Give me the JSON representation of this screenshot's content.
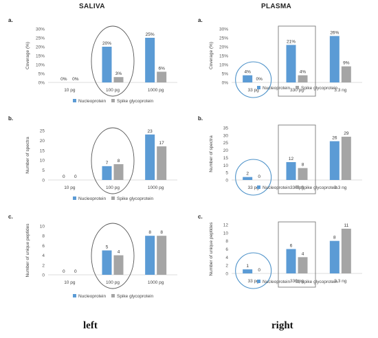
{
  "headers": {
    "left": "SALIVA",
    "right": "PLASMA"
  },
  "captions": {
    "left": "left",
    "right": "right"
  },
  "colors": {
    "nucleoprotein": "#5b9bd5",
    "spike": "#a5a5a5"
  },
  "chart_data": [
    {
      "id": "saliva-a",
      "panel_label": "a.",
      "type": "bar",
      "categories": [
        "10 pg",
        "100 pg",
        "1000 pg"
      ],
      "series": [
        {
          "name": "Nucleoprotein",
          "values": [
            0,
            20,
            25
          ],
          "labels": [
            "0%",
            "20%",
            "25%"
          ]
        },
        {
          "name": "Spike glycoprotein",
          "values": [
            0,
            3,
            6
          ],
          "labels": [
            "0%",
            "3%",
            "6%"
          ]
        }
      ],
      "ylabel": "Coverage (%)",
      "ylim": [
        0,
        30
      ],
      "yticks": [
        0,
        5,
        10,
        15,
        20,
        25,
        30
      ],
      "ytick_labels": [
        "0%",
        "5%",
        "10%",
        "15%",
        "20%",
        "25%",
        "30%"
      ],
      "grid": false,
      "legend": "bottom",
      "annotation": {
        "shape": "ellipse",
        "category_index": 1
      }
    },
    {
      "id": "saliva-b",
      "panel_label": "b.",
      "type": "bar",
      "categories": [
        "10 pg",
        "100 pg",
        "1000 pg"
      ],
      "series": [
        {
          "name": "Nucleoprotein",
          "values": [
            0,
            7,
            23
          ],
          "labels": [
            "0",
            "7",
            "23"
          ]
        },
        {
          "name": "Spike glycoprotein",
          "values": [
            0,
            8,
            17
          ],
          "labels": [
            "0",
            "8",
            "17"
          ]
        }
      ],
      "ylabel": "Number of spectra",
      "ylim": [
        0,
        25
      ],
      "yticks": [
        0,
        5,
        10,
        15,
        20,
        25
      ],
      "ytick_labels": [
        "0",
        "5",
        "10",
        "15",
        "20",
        "25"
      ],
      "grid": false,
      "legend": "bottom",
      "annotation": {
        "shape": "ellipse",
        "category_index": 1
      }
    },
    {
      "id": "saliva-c",
      "panel_label": "c.",
      "type": "bar",
      "categories": [
        "10 pg",
        "100 pg",
        "1000 pg"
      ],
      "series": [
        {
          "name": "Nucleoprotein",
          "values": [
            0,
            5,
            8
          ],
          "labels": [
            "0",
            "5",
            "8"
          ]
        },
        {
          "name": "Spike glycoprotein",
          "values": [
            0,
            4,
            8
          ],
          "labels": [
            "0",
            "4",
            "8"
          ]
        }
      ],
      "ylabel": "Number of unique peptides",
      "ylim": [
        0,
        10
      ],
      "yticks": [
        0,
        2,
        4,
        6,
        8,
        10
      ],
      "ytick_labels": [
        "0",
        "2",
        "4",
        "6",
        "8",
        "10"
      ],
      "grid": false,
      "legend": "bottom",
      "annotation": {
        "shape": "ellipse",
        "category_index": 1
      }
    },
    {
      "id": "plasma-a",
      "panel_label": "a.",
      "type": "bar",
      "categories": [
        "33 pg",
        "330 pg",
        "3.3 ng"
      ],
      "series": [
        {
          "name": "Nucleoprotein",
          "values": [
            4,
            21,
            26
          ],
          "labels": [
            "4%",
            "21%",
            "26%"
          ]
        },
        {
          "name": "Spike glycoprotein",
          "values": [
            0,
            4,
            9
          ],
          "labels": [
            "0%",
            "4%",
            "9%"
          ]
        }
      ],
      "ylabel": "Coverage (%)",
      "ylim": [
        0,
        30
      ],
      "yticks": [
        0,
        5,
        10,
        15,
        20,
        25,
        30
      ],
      "ytick_labels": [
        "0%",
        "5%",
        "10%",
        "15%",
        "20%",
        "25%",
        "30%"
      ],
      "grid": false,
      "legend": "bottom",
      "annotation": {
        "shape": "circle",
        "category_index": 0,
        "box_category_index": 1
      }
    },
    {
      "id": "plasma-b",
      "panel_label": "b.",
      "type": "bar",
      "categories": [
        "33 pg",
        "330 pg",
        "3.3 ng"
      ],
      "series": [
        {
          "name": "Nucleoprotein",
          "values": [
            2,
            12,
            26
          ],
          "labels": [
            "2",
            "12",
            "26"
          ]
        },
        {
          "name": "Spike glycoprotein",
          "values": [
            0,
            8,
            29
          ],
          "labels": [
            "0",
            "8",
            "29"
          ]
        }
      ],
      "ylabel": "Number of spectra",
      "ylim": [
        0,
        35
      ],
      "yticks": [
        0,
        5,
        10,
        15,
        20,
        25,
        30,
        35
      ],
      "ytick_labels": [
        "0",
        "5",
        "10",
        "15",
        "20",
        "25",
        "30",
        "35"
      ],
      "grid": false,
      "legend": "bottom",
      "annotation": {
        "shape": "circle",
        "category_index": 0,
        "box_category_index": 1
      }
    },
    {
      "id": "plasma-c",
      "panel_label": "c.",
      "type": "bar",
      "categories": [
        "33 pg",
        "330 pg",
        "3.3 ng"
      ],
      "series": [
        {
          "name": "Nucleoprotein",
          "values": [
            1,
            6,
            8
          ],
          "labels": [
            "1",
            "6",
            "8"
          ]
        },
        {
          "name": "Spike glycoprotein",
          "values": [
            0,
            4,
            11
          ],
          "labels": [
            "0",
            "4",
            "11"
          ]
        }
      ],
      "ylabel": "Number of unique peptides",
      "ylim": [
        0,
        12
      ],
      "yticks": [
        0,
        2,
        4,
        6,
        8,
        10,
        12
      ],
      "ytick_labels": [
        "0",
        "2",
        "4",
        "6",
        "8",
        "10",
        "12"
      ],
      "grid": false,
      "legend": "bottom",
      "annotation": {
        "shape": "circle",
        "category_index": 0,
        "box_category_index": 1
      }
    }
  ]
}
